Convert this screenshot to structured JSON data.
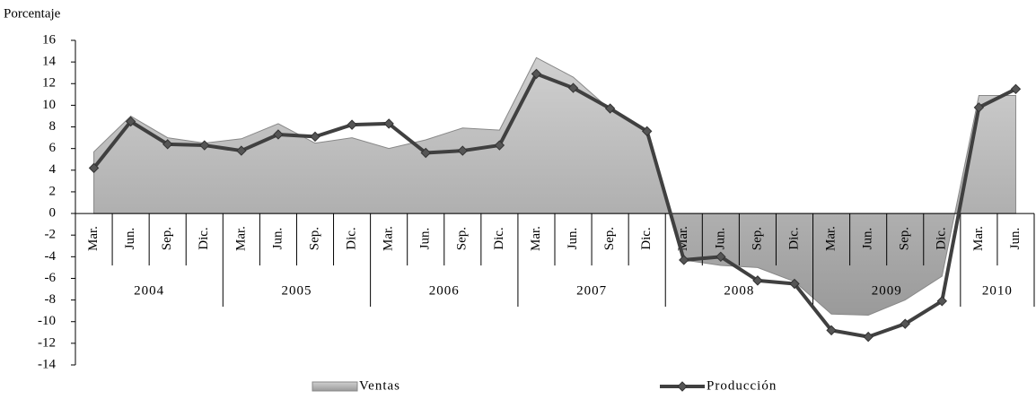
{
  "chart_data": {
    "type": "line",
    "y_label": "Porcentaje",
    "groups": [
      {
        "label": "2004",
        "categories": [
          "Mar.",
          "Jun.",
          "Sep.",
          "Dic."
        ]
      },
      {
        "label": "2005",
        "categories": [
          "Mar.",
          "Jun.",
          "Sep.",
          "Dic."
        ]
      },
      {
        "label": "2006",
        "categories": [
          "Mar.",
          "Jun.",
          "Sep.",
          "Dic."
        ]
      },
      {
        "label": "2007",
        "categories": [
          "Mar.",
          "Jun.",
          "Sep.",
          "Dic."
        ]
      },
      {
        "label": "2008",
        "categories": [
          "Mar.",
          "Jun.",
          "Sep.",
          "Dic."
        ]
      },
      {
        "label": "2009",
        "categories": [
          "Mar.",
          "Jun.",
          "Sep.",
          "Dic."
        ]
      },
      {
        "label": "2010",
        "categories": [
          "Mar.",
          "Jun."
        ]
      }
    ],
    "series": [
      {
        "name": "Ventas",
        "kind": "area",
        "color": "#a8a8a8",
        "values": [
          5.7,
          9.0,
          7.0,
          6.5,
          6.9,
          8.3,
          6.5,
          7.0,
          6.0,
          6.8,
          7.9,
          7.7,
          14.4,
          12.6,
          9.6,
          7.6,
          -4.3,
          -4.8,
          -5.0,
          -6.3,
          -9.3,
          -9.4,
          -8.0,
          -5.8,
          10.9,
          10.9
        ]
      },
      {
        "name": "Producción",
        "kind": "line",
        "color": "#404040",
        "values": [
          4.2,
          8.5,
          6.4,
          6.3,
          5.8,
          7.3,
          7.1,
          8.2,
          8.3,
          5.6,
          5.8,
          6.3,
          12.9,
          11.6,
          9.7,
          7.6,
          -4.3,
          -4.0,
          -6.2,
          -6.5,
          -10.8,
          -11.4,
          -10.2,
          -8.1,
          9.8,
          11.5
        ]
      }
    ],
    "ylim": [
      -14,
      16
    ],
    "yticks": [
      -14,
      -12,
      -10,
      -8,
      -6,
      -4,
      -2,
      0,
      2,
      4,
      6,
      8,
      10,
      12,
      14,
      16
    ],
    "grid": false,
    "legend": "bottom"
  }
}
